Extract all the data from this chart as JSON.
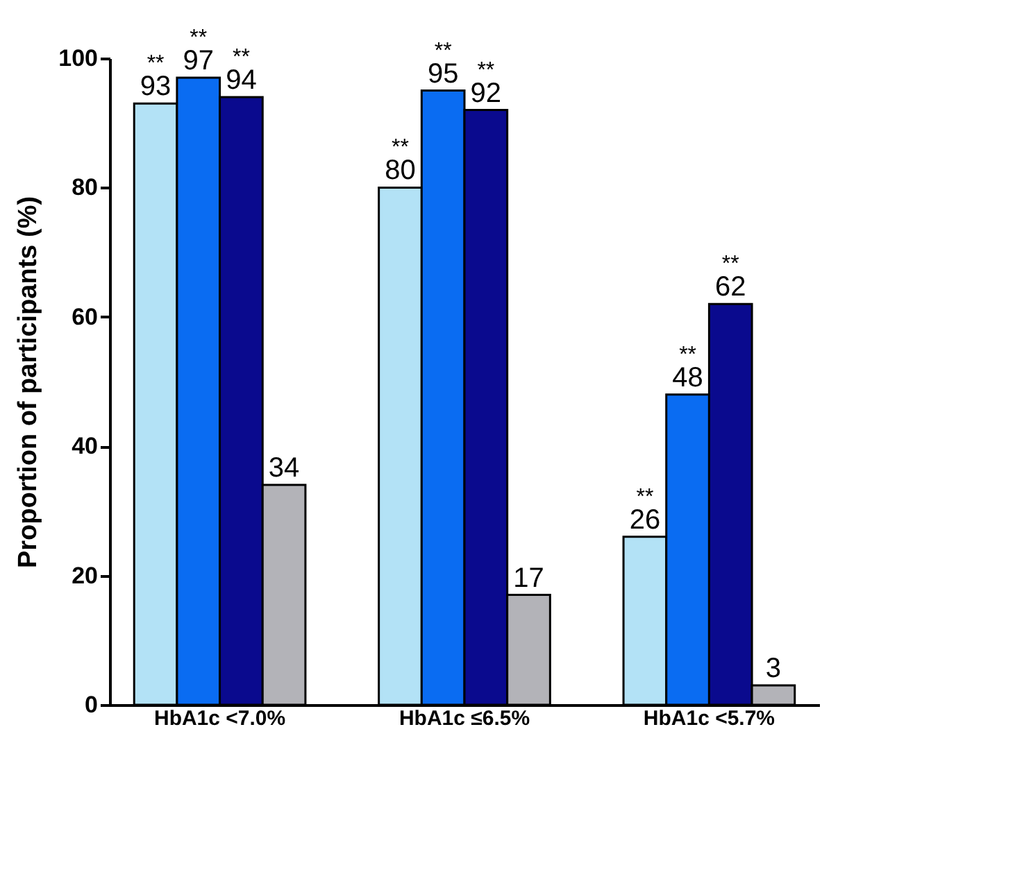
{
  "chart_data": {
    "type": "bar",
    "ylabel": "Proportion of participants (%)",
    "categories": [
      "HbA1c <7.0%",
      "HbA1c ≤6.5%",
      "HbA1c <5.7%"
    ],
    "series": [
      {
        "color": "#b3e2f6",
        "values": [
          93,
          80,
          26
        ]
      },
      {
        "color": "#0a6cf2",
        "values": [
          97,
          95,
          48
        ]
      },
      {
        "color": "#0a0a8e",
        "values": [
          94,
          92,
          62
        ]
      },
      {
        "color": "#b3b3b8",
        "values": [
          34,
          17,
          3
        ]
      }
    ],
    "ylim": [
      0,
      100
    ],
    "yticks": [
      0,
      20,
      40,
      60,
      80,
      100
    ],
    "grid": false,
    "legend": false,
    "data_labels": true,
    "annotations": [
      {
        "text": "**",
        "x": "HbA1c <7.0%",
        "y": 93
      },
      {
        "text": "**",
        "x": "HbA1c <7.0%",
        "y": 97
      },
      {
        "text": "**",
        "x": "HbA1c <7.0%",
        "y": 94
      },
      {
        "text": "**",
        "x": "HbA1c ≤6.5%",
        "y": 80
      },
      {
        "text": "**",
        "x": "HbA1c ≤6.5%",
        "y": 95
      },
      {
        "text": "**",
        "x": "HbA1c ≤6.5%",
        "y": 92
      },
      {
        "text": "**",
        "x": "HbA1c <5.7%",
        "y": 26
      },
      {
        "text": "**",
        "x": "HbA1c <5.7%",
        "y": 48
      },
      {
        "text": "**",
        "x": "HbA1c <5.7%",
        "y": 62
      }
    ]
  }
}
